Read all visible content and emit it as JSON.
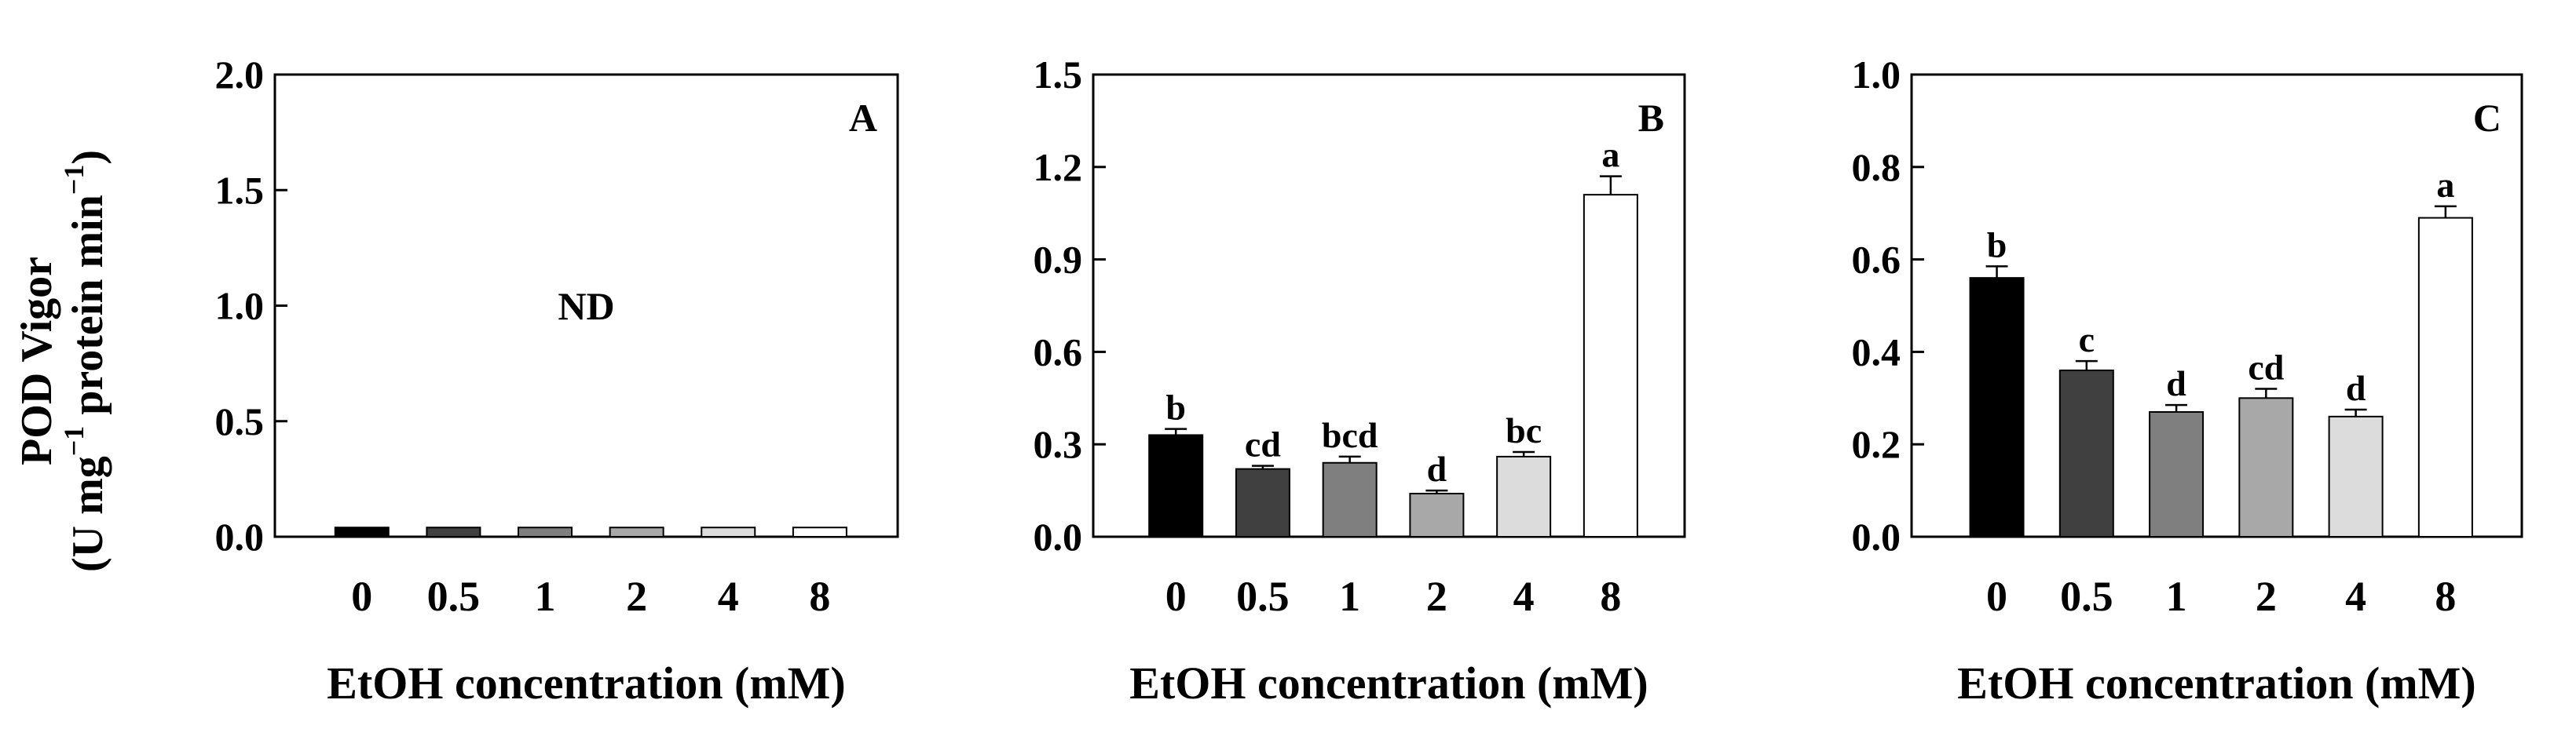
{
  "figure": {
    "ylabel_line1": "POD Vigor",
    "ylabel_line2": "(U mg",
    "ylabel_sup1": "−1",
    "ylabel_line2b": " protein min",
    "ylabel_sup2": "−1",
    "ylabel_close": ")"
  },
  "colors": {
    "bars": [
      "#000000",
      "#404040",
      "#7f7f7f",
      "#a8a8a8",
      "#dcdcdc",
      "#ffffff"
    ],
    "axis": "#000000"
  },
  "chart_data": [
    {
      "type": "bar",
      "panel_label": "A",
      "categories": [
        "0",
        "0.5",
        "1",
        "2",
        "4",
        "8"
      ],
      "values": [
        0.04,
        0.04,
        0.04,
        0.04,
        0.04,
        0.04
      ],
      "errors": [
        0,
        0,
        0,
        0,
        0,
        0
      ],
      "sig_letters": [
        "",
        "",
        "",
        "",
        "",
        ""
      ],
      "annotation": "ND",
      "xlabel": "EtOH concentration (mM)",
      "ylim": [
        0,
        2.0
      ],
      "yticks": [
        "0.0",
        "0.5",
        "1.0",
        "1.5",
        "2.0"
      ],
      "ytick_values": [
        0,
        0.5,
        1.0,
        1.5,
        2.0
      ]
    },
    {
      "type": "bar",
      "panel_label": "B",
      "categories": [
        "0",
        "0.5",
        "1",
        "2",
        "4",
        "8"
      ],
      "values": [
        0.33,
        0.22,
        0.24,
        0.14,
        0.26,
        1.11
      ],
      "errors": [
        0.02,
        0.01,
        0.02,
        0.01,
        0.015,
        0.06
      ],
      "sig_letters": [
        "b",
        "cd",
        "bcd",
        "d",
        "bc",
        "a"
      ],
      "annotation": "",
      "xlabel": "EtOH concentration (mM)",
      "ylim": [
        0,
        1.5
      ],
      "yticks": [
        "0.0",
        "0.3",
        "0.6",
        "0.9",
        "1.2",
        "1.5"
      ],
      "ytick_values": [
        0,
        0.3,
        0.6,
        0.9,
        1.2,
        1.5
      ]
    },
    {
      "type": "bar",
      "panel_label": "C",
      "categories": [
        "0",
        "0.5",
        "1",
        "2",
        "4",
        "8"
      ],
      "values": [
        0.56,
        0.36,
        0.27,
        0.3,
        0.26,
        0.69
      ],
      "errors": [
        0.025,
        0.02,
        0.015,
        0.02,
        0.015,
        0.025
      ],
      "sig_letters": [
        "b",
        "c",
        "d",
        "cd",
        "d",
        "a"
      ],
      "annotation": "",
      "xlabel": "EtOH concentration (mM)",
      "ylim": [
        0,
        1.0
      ],
      "yticks": [
        "0.0",
        "0.2",
        "0.4",
        "0.6",
        "0.8",
        "1.0"
      ],
      "ytick_values": [
        0,
        0.2,
        0.4,
        0.6,
        0.8,
        1.0
      ]
    }
  ]
}
